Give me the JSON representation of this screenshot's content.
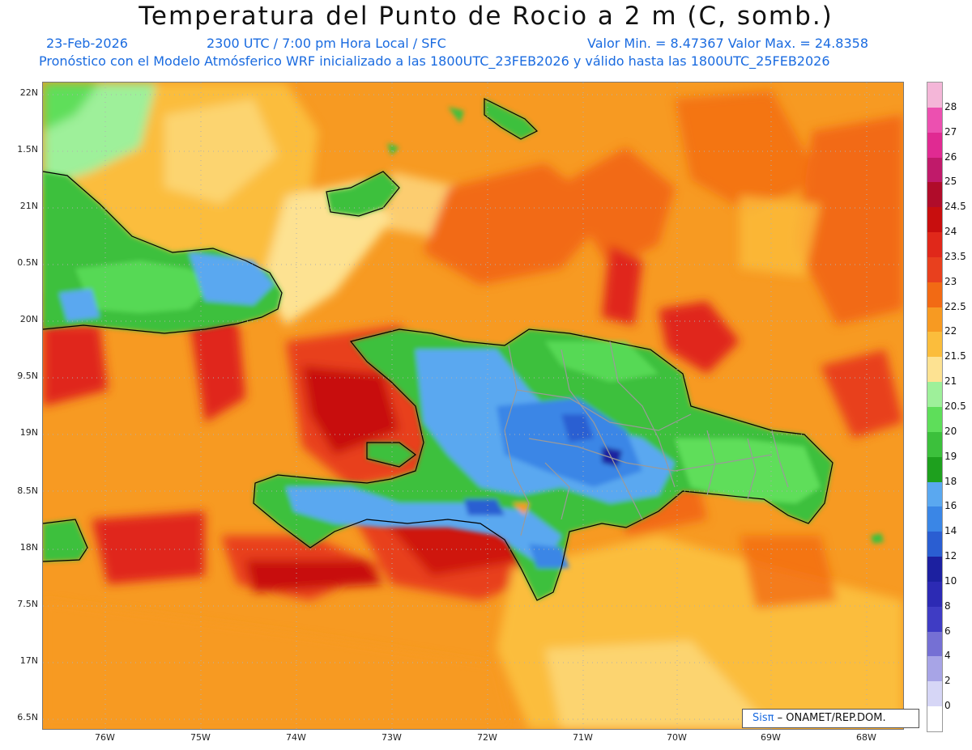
{
  "title": "Temperatura del Punto de Rocio a 2 m (C, somb.)",
  "subtitle": {
    "date": "23-Feb-2026",
    "time": "2300 UTC / 7:00 pm Hora Local / SFC",
    "min_max": "Valor Min. = 8.47367   Valor Max. = 24.8358",
    "model_line": "Pronóstico con el Modelo Atmósferico WRF inicializado a las 1800UTC_23FEB2026 y válido hasta las  1800UTC_25FEB2026"
  },
  "map": {
    "lat_labels": [
      "22N",
      "1.5N",
      "21N",
      "0.5N",
      "20N",
      "9.5N",
      "19N",
      "8.5N",
      "18N",
      "7.5N",
      "17N",
      "6.5N"
    ],
    "lon_labels": [
      "76W",
      "75W",
      "74W",
      "73W",
      "72W",
      "71W",
      "70W",
      "69W",
      "68W"
    ]
  },
  "legend": {
    "levels": [
      {
        "label": "28",
        "color": "#f4b6d8"
      },
      {
        "label": "27",
        "color": "#ec50b0"
      },
      {
        "label": "26",
        "color": "#e02a92"
      },
      {
        "label": "25",
        "color": "#c01a6a"
      },
      {
        "label": "24.5",
        "color": "#b00c2a"
      },
      {
        "label": "24",
        "color": "#c80e0e"
      },
      {
        "label": "23.5",
        "color": "#e0281a"
      },
      {
        "label": "23",
        "color": "#e8401e"
      },
      {
        "label": "22.5",
        "color": "#f26a14"
      },
      {
        "label": "22",
        "color": "#f79a22"
      },
      {
        "label": "21.5",
        "color": "#fbbd3c"
      },
      {
        "label": "21",
        "color": "#fde292"
      },
      {
        "label": "20.5",
        "color": "#9ef09a"
      },
      {
        "label": "20",
        "color": "#5ede5a"
      },
      {
        "label": "19",
        "color": "#3cc03c"
      },
      {
        "label": "18",
        "color": "#1ea01e"
      },
      {
        "label": "16",
        "color": "#5aa8f0"
      },
      {
        "label": "14",
        "color": "#3a86e6"
      },
      {
        "label": "12",
        "color": "#2a5ed2"
      },
      {
        "label": "10",
        "color": "#1c20a0"
      },
      {
        "label": "8",
        "color": "#2c2ab4"
      },
      {
        "label": "6",
        "color": "#3f3cc4"
      },
      {
        "label": "4",
        "color": "#7570d4"
      },
      {
        "label": "2",
        "color": "#a7a4e6"
      },
      {
        "label": "0",
        "color": "#d6d6f6"
      },
      {
        "label": "",
        "color": "#ffffff"
      }
    ]
  },
  "credit": {
    "sis": "Sisπ",
    "rest": "– ONAMET/REP.DOM."
  }
}
